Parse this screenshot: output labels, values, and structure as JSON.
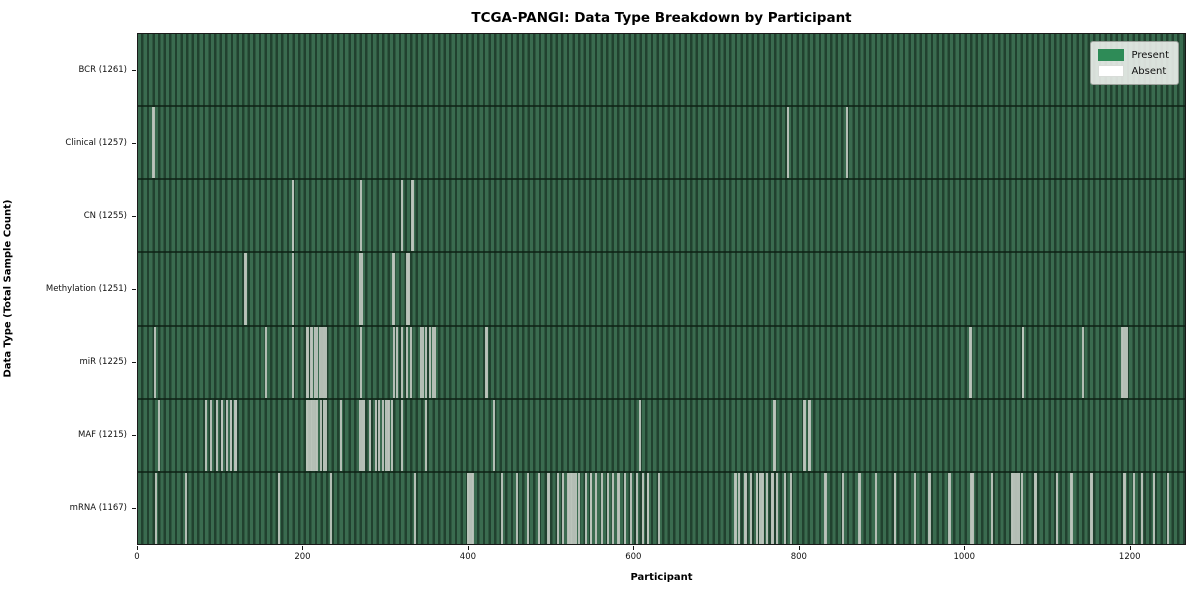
{
  "title": "TCGA-PANGI: Data Type Breakdown by Participant",
  "axes": {
    "xlabel": "Participant",
    "ylabel": "Data Type (Total Sample Count)",
    "xticks": [
      0,
      200,
      400,
      600,
      800,
      1000,
      1200
    ],
    "x_axis_max": 1268
  },
  "legend": {
    "items": [
      {
        "label": "Present",
        "color": "#2e8b57"
      },
      {
        "label": "Absent",
        "color": "#ffffff"
      }
    ]
  },
  "colors": {
    "present_stripe_light": "#3a6b4f",
    "present_stripe_dark": "#21412f",
    "absent_line": "#bcc4bc",
    "plot_border": "#1a1a1a"
  },
  "chart_data": {
    "type": "heatmap",
    "title": "TCGA-PANGI: Data Type Breakdown by Participant",
    "xlabel": "Participant",
    "ylabel": "Data Type (Total Sample Count)",
    "x_range": [
      0,
      1261
    ],
    "total_participants": 1261,
    "legend": [
      "Present",
      "Absent"
    ],
    "legend_position": "upper right",
    "cell_encoding": "green = data present for participant, white line = data absent",
    "rows": [
      {
        "label": "BCR (1261)",
        "data_type": "BCR",
        "total_samples": 1261,
        "absent_participants": []
      },
      {
        "label": "Clinical (1257)",
        "data_type": "Clinical",
        "total_samples": 1257,
        "absent_participants": [
          17,
          18,
          786,
          858
        ]
      },
      {
        "label": "CN (1255)",
        "data_type": "CN",
        "total_samples": 1255,
        "absent_participants": [
          186,
          187,
          269,
          318,
          331,
          332
        ]
      },
      {
        "label": "Methylation (1251)",
        "data_type": "Methylation",
        "total_samples": 1251,
        "absent_participants": [
          128,
          129,
          187,
          268,
          270,
          308,
          309,
          325,
          326,
          327
        ]
      },
      {
        "label": "miR (1225)",
        "data_type": "miR",
        "total_samples": 1225,
        "absent_participants": [
          19,
          154,
          187,
          203,
          205,
          208,
          210,
          213,
          216,
          219,
          222,
          224,
          226,
          269,
          309,
          313,
          318,
          324,
          330,
          341,
          344,
          348,
          352,
          356,
          359,
          420,
          421,
          1007,
          1008,
          1070,
          1071,
          1143,
          1190,
          1192,
          1194,
          1196
        ]
      },
      {
        "label": "MAF (1215)",
        "data_type": "MAF",
        "total_samples": 1215,
        "absent_participants": [
          24,
          81,
          87,
          94,
          100,
          101,
          106,
          111,
          112,
          116,
          117,
          118,
          203,
          204,
          206,
          208,
          210,
          212,
          214,
          216,
          220,
          224,
          227,
          245,
          268,
          270,
          272,
          280,
          287,
          291,
          295,
          299,
          301,
          303,
          306,
          318,
          347,
          430,
          607,
          769,
          770,
          805,
          806,
          811,
          812,
          813
        ]
      },
      {
        "label": "mRNA (1167)",
        "data_type": "mRNA",
        "total_samples": 1167,
        "absent_participants": [
          21,
          57,
          169,
          233,
          334,
          398,
          399,
          401,
          403,
          405,
          440,
          458,
          471,
          484,
          495,
          496,
          507,
          513,
          519,
          521,
          523,
          525,
          527,
          529,
          533,
          541,
          547,
          548,
          553,
          561,
          568,
          574,
          580,
          581,
          588,
          596,
          603,
          610,
          616,
          617,
          630,
          722,
          723,
          727,
          734,
          735,
          741,
          748,
          749,
          752,
          755,
          756,
          760,
          767,
          768,
          773,
          782,
          790,
          831,
          832,
          852,
          872,
          873,
          893,
          915,
          916,
          940,
          957,
          958,
          981,
          982,
          1008,
          1009,
          1010,
          1033,
          1057,
          1059,
          1061,
          1063,
          1066,
          1069,
          1085,
          1086,
          1112,
          1129,
          1130,
          1153,
          1154,
          1193,
          1194,
          1205,
          1215,
          1229,
          1246
        ]
      }
    ]
  }
}
